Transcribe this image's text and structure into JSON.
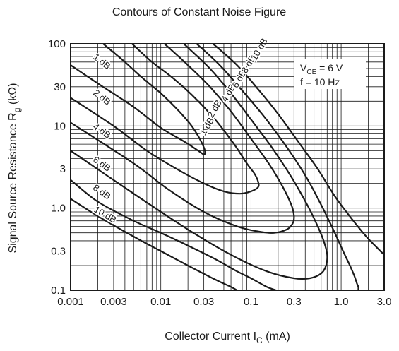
{
  "chart_data": {
    "type": "line",
    "title": "Contours of Constant Noise Figure",
    "xlabel": {
      "main": "Collector Current  I",
      "sub": "C",
      "unit": "  (mA)"
    },
    "ylabel": {
      "main": "Signal Source Resistance  R",
      "sub": "g",
      "unit": "  (kΩ)"
    },
    "x_scale": "log",
    "y_scale": "log",
    "xlim": [
      0.001,
      3.0
    ],
    "ylim": [
      0.1,
      100
    ],
    "x_ticks": [
      0.001,
      0.003,
      0.01,
      0.03,
      0.1,
      0.3,
      1.0,
      3.0
    ],
    "x_tick_labels": [
      "0.001",
      "0.003",
      "0.01",
      "0.03",
      "0.1",
      "0.3",
      "1.0",
      "3.0"
    ],
    "y_ticks": [
      0.1,
      0.3,
      1.0,
      3,
      10,
      30,
      100
    ],
    "y_tick_labels": [
      "0.1",
      "0.3",
      "1.0",
      "3",
      "10",
      "30",
      "100"
    ],
    "grid": true,
    "conditions": [
      {
        "main": "V",
        "sub": "CE",
        "rest": " = 6 V"
      },
      {
        "main": "f = 10 Hz",
        "sub": "",
        "rest": ""
      }
    ],
    "series": [
      {
        "name": "1 dB",
        "x": [
          0.0023,
          0.004,
          0.006,
          0.01,
          0.016,
          0.022,
          0.027,
          0.03,
          0.031,
          0.03,
          0.026,
          0.018,
          0.01,
          0.005,
          0.002,
          0.001
        ],
        "y": [
          100,
          60,
          40,
          25,
          15,
          10,
          7,
          5.5,
          4.8,
          4.5,
          5,
          6.5,
          9.5,
          17,
          33,
          55
        ]
      },
      {
        "name": "2 dB",
        "x": [
          0.0048,
          0.008,
          0.013,
          0.022,
          0.04,
          0.065,
          0.09,
          0.11,
          0.12,
          0.12,
          0.1,
          0.075,
          0.05,
          0.03,
          0.015,
          0.007,
          0.003,
          0.001
        ],
        "y": [
          100,
          60,
          40,
          24,
          12,
          6,
          3.5,
          2.6,
          2.1,
          1.8,
          1.6,
          1.5,
          1.6,
          2,
          3,
          5,
          10,
          22
        ]
      },
      {
        "name": "4 dB",
        "x": [
          0.011,
          0.02,
          0.035,
          0.06,
          0.1,
          0.16,
          0.22,
          0.28,
          0.3,
          0.29,
          0.25,
          0.18,
          0.12,
          0.07,
          0.03,
          0.012,
          0.005,
          0.001
        ],
        "y": [
          100,
          55,
          30,
          15,
          7,
          3.4,
          1.9,
          1.1,
          0.8,
          0.65,
          0.55,
          0.5,
          0.52,
          0.6,
          0.9,
          1.7,
          3.5,
          11
        ]
      },
      {
        "name": "6 dB",
        "x": [
          0.018,
          0.035,
          0.06,
          0.1,
          0.17,
          0.28,
          0.42,
          0.55,
          0.65,
          0.7,
          0.68,
          0.6,
          0.45,
          0.3,
          0.15,
          0.06,
          0.02,
          0.005,
          0.001
        ],
        "y": [
          100,
          50,
          25,
          12,
          5.5,
          2.4,
          1.1,
          0.6,
          0.38,
          0.27,
          0.2,
          0.16,
          0.14,
          0.14,
          0.17,
          0.27,
          0.55,
          1.5,
          5
        ]
      },
      {
        "name": "8 dB",
        "x": [
          0.025,
          0.045,
          0.08,
          0.14,
          0.25,
          0.4,
          0.6,
          0.85,
          1.05,
          1.25,
          1.4,
          1.5,
          1.55,
          1.55
        ],
        "y": [
          100,
          55,
          27,
          13,
          5.5,
          2.5,
          1.1,
          0.5,
          0.3,
          0.2,
          0.15,
          0.12,
          0.11,
          0.1
        ]
      },
      {
        "name": "10 dB",
        "x": [
          0.038,
          0.07,
          0.12,
          0.2,
          0.35,
          0.55,
          0.85,
          1.3,
          1.9,
          2.5,
          3.0
        ],
        "y": [
          100,
          55,
          28,
          14,
          6,
          3,
          1.4,
          0.75,
          0.45,
          0.33,
          0.27
        ]
      },
      {
        "name": "8 dB",
        "x": [
          0.001,
          0.002,
          0.005,
          0.01,
          0.02,
          0.04,
          0.07,
          0.1,
          0.15,
          0.19
        ],
        "y": [
          2.2,
          1.2,
          0.7,
          0.5,
          0.35,
          0.24,
          0.17,
          0.14,
          0.11,
          0.1
        ]
      },
      {
        "name": "10 dB",
        "x": [
          0.001,
          0.002,
          0.005,
          0.01,
          0.02,
          0.04,
          0.06,
          0.07
        ],
        "y": [
          1.3,
          0.8,
          0.45,
          0.3,
          0.2,
          0.135,
          0.11,
          0.1
        ]
      }
    ],
    "contour_labels": [
      {
        "text": "1 dB",
        "x": 0.0022,
        "y": 60,
        "angle": 38
      },
      {
        "text": "2 dB",
        "x": 0.0022,
        "y": 22,
        "angle": 38
      },
      {
        "text": "4 dB",
        "x": 0.0022,
        "y": 8.6,
        "angle": 35
      },
      {
        "text": "6 dB",
        "x": 0.0022,
        "y": 3.4,
        "angle": 35
      },
      {
        "text": "8 dB",
        "x": 0.0022,
        "y": 1.55,
        "angle": 35
      },
      {
        "text": "10 dB",
        "x": 0.0024,
        "y": 0.82,
        "angle": 30
      },
      {
        "text": "1 dB",
        "x": 0.033,
        "y": 9.8,
        "angle": -60
      },
      {
        "text": "2 dB",
        "x": 0.04,
        "y": 16,
        "angle": -60
      },
      {
        "text": "4 dB",
        "x": 0.057,
        "y": 25,
        "angle": -60
      },
      {
        "text": "6 dB",
        "x": 0.075,
        "y": 37,
        "angle": -60
      },
      {
        "text": "8 dB",
        "x": 0.095,
        "y": 56,
        "angle": -60
      },
      {
        "text": "10 dB",
        "x": 0.125,
        "y": 85,
        "angle": -60
      }
    ]
  }
}
